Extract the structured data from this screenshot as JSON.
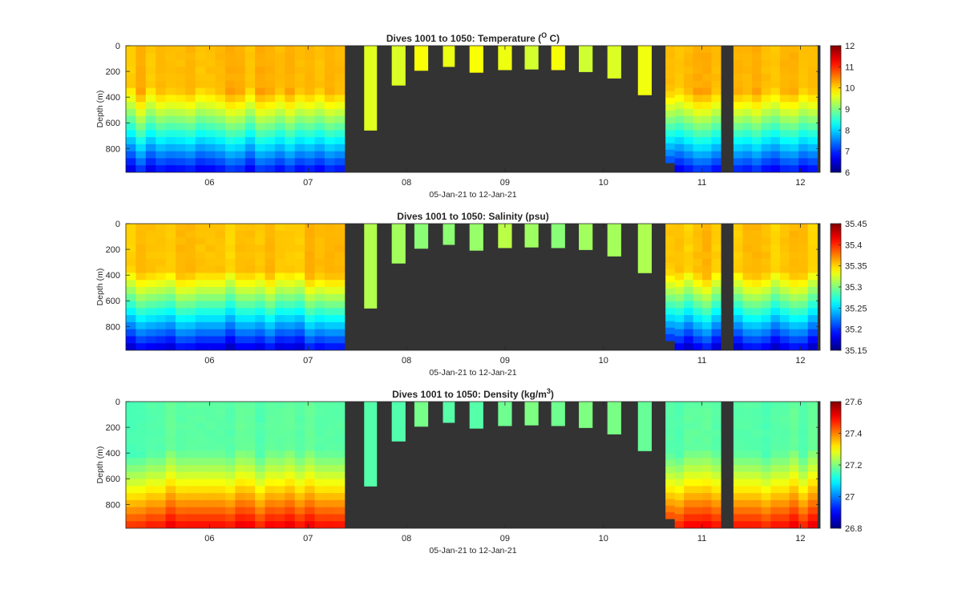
{
  "figure": {
    "background": "#ffffff",
    "gap_color": "#333333",
    "colormap": "jet"
  },
  "chart_data": [
    {
      "type": "heatmap",
      "variable": "temperature",
      "title_prefix": "Dives 1001 to 1050: Temperature (",
      "title_sup": "O",
      "title_suffix": " C)",
      "xlabel": "05-Jan-21 to 12-Jan-21",
      "ylabel": "Depth (m)",
      "xlim": [
        5.15,
        12.2
      ],
      "ylim": [
        0,
        985
      ],
      "y_reversed": true,
      "xticks": [
        6,
        7,
        8,
        9,
        10,
        11,
        12
      ],
      "xticklabels": [
        "06",
        "07",
        "08",
        "09",
        "10",
        "11",
        "12"
      ],
      "yticks": [
        0,
        200,
        400,
        600,
        800
      ],
      "yticklabels": [
        "0",
        "200",
        "400",
        "600",
        "800"
      ],
      "colorbar": {
        "min": 6,
        "max": 12,
        "ticks": [
          6,
          7,
          8,
          9,
          10,
          11,
          12
        ],
        "ticklabels": [
          "6",
          "7",
          "8",
          "9",
          "10",
          "11",
          "12"
        ]
      },
      "profile": {
        "surface": 10.15,
        "layer_bottom": 340,
        "deep_bottom": 6.7,
        "dive_variation": 0.25
      },
      "shallow_dive_value": 9.6,
      "dives": [
        {
          "start": 5.15,
          "end": 7.37,
          "max_depth": 985,
          "segments": 22,
          "style": "profile"
        },
        {
          "start": 7.57,
          "end": 7.7,
          "max_depth": 660,
          "style": "shallow"
        },
        {
          "start": 7.85,
          "end": 7.99,
          "max_depth": 310,
          "style": "shallow"
        },
        {
          "start": 8.08,
          "end": 8.22,
          "max_depth": 195,
          "style": "shallow"
        },
        {
          "start": 8.37,
          "end": 8.49,
          "max_depth": 165,
          "style": "shallow"
        },
        {
          "start": 8.64,
          "end": 8.78,
          "max_depth": 210,
          "style": "shallow"
        },
        {
          "start": 8.93,
          "end": 9.07,
          "max_depth": 190,
          "style": "shallow"
        },
        {
          "start": 9.2,
          "end": 9.34,
          "max_depth": 185,
          "style": "shallow"
        },
        {
          "start": 9.47,
          "end": 9.61,
          "max_depth": 190,
          "style": "shallow"
        },
        {
          "start": 9.75,
          "end": 9.89,
          "max_depth": 205,
          "style": "shallow"
        },
        {
          "start": 10.04,
          "end": 10.18,
          "max_depth": 255,
          "style": "shallow"
        },
        {
          "start": 10.35,
          "end": 10.49,
          "max_depth": 385,
          "style": "shallow"
        },
        {
          "start": 10.63,
          "end": 11.19,
          "max_depth": 985,
          "segments": 6,
          "style": "profile",
          "first_depth": 910
        },
        {
          "start": 11.32,
          "end": 12.17,
          "max_depth": 985,
          "segments": 9,
          "style": "profile"
        }
      ]
    },
    {
      "type": "heatmap",
      "variable": "salinity",
      "title_prefix": "Dives 1001 to 1050: Salinity (psu)",
      "title_sup": "",
      "title_suffix": "",
      "xlabel": "05-Jan-21 to 12-Jan-21",
      "ylabel": "Depth (m)",
      "xlim": [
        5.15,
        12.2
      ],
      "ylim": [
        0,
        985
      ],
      "y_reversed": true,
      "xticks": [
        6,
        7,
        8,
        9,
        10,
        11,
        12
      ],
      "xticklabels": [
        "06",
        "07",
        "08",
        "09",
        "10",
        "11",
        "12"
      ],
      "yticks": [
        0,
        200,
        400,
        600,
        800
      ],
      "yticklabels": [
        "0",
        "200",
        "400",
        "600",
        "800"
      ],
      "colorbar": {
        "min": 35.15,
        "max": 35.45,
        "ticks": [
          35.15,
          35.2,
          35.25,
          35.3,
          35.35,
          35.4,
          35.45
        ],
        "ticklabels": [
          "35.15",
          "35.2",
          "35.25",
          "35.3",
          "35.35",
          "35.4",
          "35.45"
        ]
      },
      "profile": {
        "surface": 35.355,
        "layer_bottom": 360,
        "deep_bottom": 35.175,
        "dive_variation": 0.015
      },
      "shallow_dive_value": 35.31,
      "dives": [
        {
          "start": 5.15,
          "end": 7.37,
          "max_depth": 985,
          "segments": 22,
          "style": "profile"
        },
        {
          "start": 7.57,
          "end": 7.7,
          "max_depth": 660,
          "style": "shallow"
        },
        {
          "start": 7.85,
          "end": 7.99,
          "max_depth": 310,
          "style": "shallow"
        },
        {
          "start": 8.08,
          "end": 8.22,
          "max_depth": 195,
          "style": "shallow"
        },
        {
          "start": 8.37,
          "end": 8.49,
          "max_depth": 165,
          "style": "shallow"
        },
        {
          "start": 8.64,
          "end": 8.78,
          "max_depth": 210,
          "style": "shallow"
        },
        {
          "start": 8.93,
          "end": 9.07,
          "max_depth": 190,
          "style": "shallow"
        },
        {
          "start": 9.2,
          "end": 9.34,
          "max_depth": 185,
          "style": "shallow"
        },
        {
          "start": 9.47,
          "end": 9.61,
          "max_depth": 190,
          "style": "shallow"
        },
        {
          "start": 9.75,
          "end": 9.89,
          "max_depth": 205,
          "style": "shallow"
        },
        {
          "start": 10.04,
          "end": 10.18,
          "max_depth": 255,
          "style": "shallow"
        },
        {
          "start": 10.35,
          "end": 10.49,
          "max_depth": 385,
          "style": "shallow"
        },
        {
          "start": 10.63,
          "end": 11.19,
          "max_depth": 985,
          "segments": 6,
          "style": "profile",
          "first_depth": 910
        },
        {
          "start": 11.32,
          "end": 12.17,
          "max_depth": 985,
          "segments": 9,
          "style": "profile"
        }
      ]
    },
    {
      "type": "heatmap",
      "variable": "density",
      "title_prefix": "Dives 1001 to 1050: Density (kg/m",
      "title_sup": "3",
      "title_suffix": ")",
      "xlabel": "05-Jan-21 to 12-Jan-21",
      "ylabel": "Depth (m)",
      "xlim": [
        5.15,
        12.2
      ],
      "ylim": [
        0,
        985
      ],
      "y_reversed": true,
      "xticks": [
        6,
        7,
        8,
        9,
        10,
        11,
        12
      ],
      "xticklabels": [
        "06",
        "07",
        "08",
        "09",
        "10",
        "11",
        "12"
      ],
      "yticks": [
        0,
        200,
        400,
        600,
        800
      ],
      "yticklabels": [
        "0",
        "200",
        "400",
        "600",
        "800"
      ],
      "colorbar": {
        "min": 26.8,
        "max": 27.6,
        "ticks": [
          26.8,
          27.0,
          27.2,
          27.4,
          27.6
        ],
        "ticklabels": [
          "26.8",
          "27",
          "27.2",
          "27.4",
          "27.6"
        ]
      },
      "profile": {
        "surface": 27.17,
        "layer_bottom": 380,
        "deep_bottom": 27.5,
        "dive_variation": 0.03
      },
      "shallow_dive_value": 27.18,
      "dives": [
        {
          "start": 5.15,
          "end": 7.37,
          "max_depth": 985,
          "segments": 22,
          "style": "profile"
        },
        {
          "start": 7.57,
          "end": 7.7,
          "max_depth": 660,
          "style": "shallow"
        },
        {
          "start": 7.85,
          "end": 7.99,
          "max_depth": 310,
          "style": "shallow"
        },
        {
          "start": 8.08,
          "end": 8.22,
          "max_depth": 195,
          "style": "shallow"
        },
        {
          "start": 8.37,
          "end": 8.49,
          "max_depth": 165,
          "style": "shallow"
        },
        {
          "start": 8.64,
          "end": 8.78,
          "max_depth": 210,
          "style": "shallow"
        },
        {
          "start": 8.93,
          "end": 9.07,
          "max_depth": 190,
          "style": "shallow"
        },
        {
          "start": 9.2,
          "end": 9.34,
          "max_depth": 185,
          "style": "shallow"
        },
        {
          "start": 9.47,
          "end": 9.61,
          "max_depth": 190,
          "style": "shallow"
        },
        {
          "start": 9.75,
          "end": 9.89,
          "max_depth": 205,
          "style": "shallow"
        },
        {
          "start": 10.04,
          "end": 10.18,
          "max_depth": 255,
          "style": "shallow"
        },
        {
          "start": 10.35,
          "end": 10.49,
          "max_depth": 385,
          "style": "shallow"
        },
        {
          "start": 10.63,
          "end": 11.19,
          "max_depth": 985,
          "segments": 6,
          "style": "profile",
          "first_depth": 910
        },
        {
          "start": 11.32,
          "end": 12.17,
          "max_depth": 985,
          "segments": 9,
          "style": "profile"
        }
      ]
    }
  ]
}
